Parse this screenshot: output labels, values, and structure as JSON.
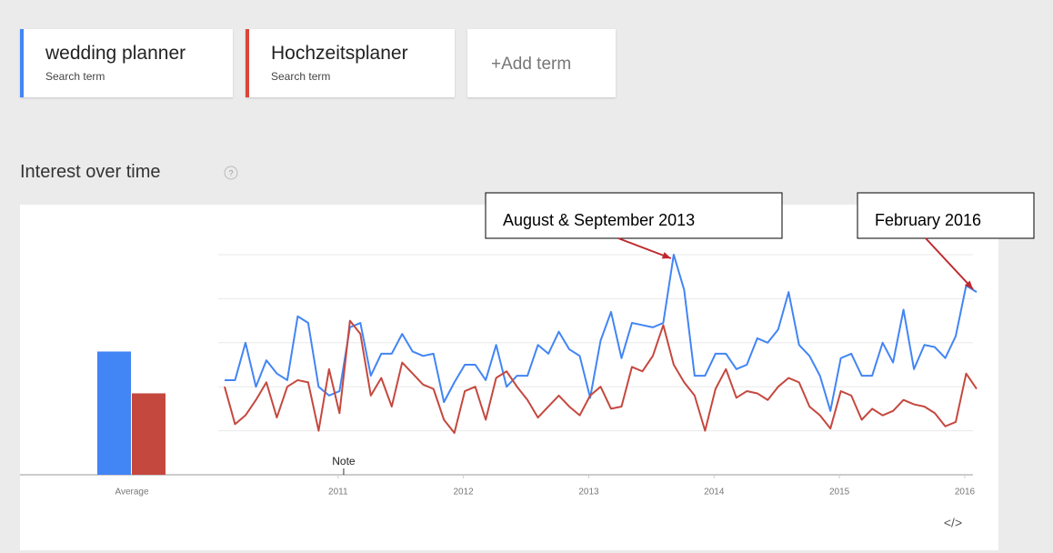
{
  "search_terms": [
    {
      "name": "wedding planner",
      "subtitle": "Search term",
      "color": "#4285f4"
    },
    {
      "name": "Hochzeitsplaner",
      "subtitle": "Search term",
      "color": "#db4437"
    }
  ],
  "add_term": "+Add term",
  "section_title": "Interest over time",
  "help_icon": "?",
  "embed_icon": "</>",
  "chart_data": {
    "type": "line",
    "xlim": [
      2010.08,
      2016.08
    ],
    "xticks": [
      2011,
      2012,
      2013,
      2014,
      2015,
      2016
    ],
    "ylim": [
      0,
      100
    ],
    "yticks": [
      20,
      40,
      60,
      80,
      100
    ],
    "grid": true,
    "average_label": "Average",
    "series": [
      {
        "name": "wedding planner",
        "color": "#4285f4",
        "average": 56,
        "values": [
          43,
          43,
          60,
          40,
          52,
          46,
          43,
          72,
          69,
          40,
          36,
          38,
          67,
          69,
          45,
          55,
          55,
          64,
          56,
          54,
          55,
          33,
          42,
          50,
          50,
          43,
          59,
          40,
          45,
          45,
          59,
          55,
          65,
          57,
          54,
          35,
          61,
          74,
          53,
          69,
          68,
          67,
          69,
          100,
          84,
          45,
          45,
          55,
          55,
          48,
          50,
          62,
          60,
          66,
          83,
          59,
          54,
          45,
          29,
          53,
          55,
          45,
          45,
          60,
          51,
          75,
          48,
          59,
          58,
          53,
          63,
          86,
          83
        ]
      },
      {
        "name": "Hochzeitsplaner",
        "color": "#c5483f",
        "average": 37,
        "values": [
          40,
          23,
          27,
          34,
          42,
          26,
          40,
          43,
          42,
          20,
          48,
          28,
          70,
          64,
          36,
          44,
          31,
          51,
          46,
          41,
          39,
          25,
          19,
          38,
          40,
          25,
          44,
          47,
          40,
          34,
          26,
          31,
          36,
          31,
          27,
          36,
          40,
          30,
          31,
          49,
          47,
          54,
          68,
          50,
          42,
          36,
          20,
          39,
          48,
          35,
          38,
          37,
          34,
          40,
          44,
          42,
          31,
          27,
          21,
          38,
          36,
          25,
          30,
          27,
          29,
          34,
          32,
          31,
          28,
          22,
          24,
          46,
          39
        ]
      }
    ],
    "note": {
      "text": "Note",
      "x": 2011.03
    },
    "annotations": [
      {
        "text": "August & September 2013",
        "x": 2013.67,
        "y": 100
      },
      {
        "text": "February 2016",
        "x": 2016.08,
        "y": 86
      }
    ]
  }
}
